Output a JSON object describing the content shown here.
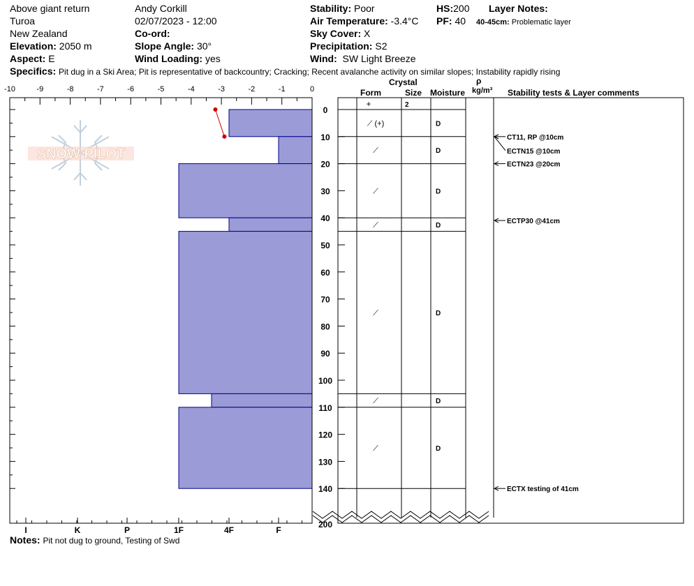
{
  "header": {
    "location": "Above giant return",
    "area": "Turoa",
    "country": "New Zealand",
    "elevation_label": "Elevation:",
    "elevation_value": "2050 m",
    "aspect_label": "Aspect:",
    "aspect_value": "E",
    "observer": "Andy Corkill",
    "datetime": "02/07/2023 - 12:00",
    "coord_label": "Co-ord:",
    "slope_label": "Slope Angle:",
    "slope_value": "30°",
    "wind_loading_label": "Wind Loading:",
    "wind_loading_value": "yes",
    "stability_label": "Stability:",
    "stability_value": "Poor",
    "air_temp_label": "Air Temperature:",
    "air_temp_value": "-3.4°C",
    "sky_label": "Sky Cover:",
    "sky_value": "X",
    "precip_label": "Precipitation:",
    "precip_value": "S2",
    "wind_label": "Wind:",
    "wind_value": "SW Light Breeze",
    "hs_label": "HS:",
    "hs_value": "200",
    "pf_label": "PF:",
    "pf_value": "40",
    "layer_notes_label": "Layer Notes:",
    "layer_note_range": "40-45cm:",
    "layer_note_text": "Problematic layer",
    "specifics_label": "Specifics:",
    "specifics_value": "Pit dug in a Ski Area; Pit is representative of backcountry; Cracking; Recent avalanche activity on similar slopes; Instability rapidly rising"
  },
  "columns": {
    "crystal": "Crystal",
    "form": "Form",
    "size": "Size",
    "moisture": "Moisture",
    "rho": "ρ",
    "density_unit": "kg/m³",
    "comments": "Stability tests & Layer comments"
  },
  "footer": {
    "notes_label": "Notes:",
    "notes_value": "Pit not dug to ground, Testing of Swd"
  },
  "logo_text": "SNOW PILOT",
  "colors": {
    "hardness_fill": "#9b9bd7",
    "hardness_stroke": "#00008b",
    "temp_line": "#cc0000"
  },
  "chart_data": {
    "type": "area",
    "temperature_axis": {
      "label": "",
      "range": [
        -10,
        0
      ],
      "ticks": [
        "-10",
        "-9",
        "-8",
        "-7",
        "-6",
        "-5",
        "-4",
        "-3",
        "-2",
        "-1",
        "0"
      ]
    },
    "hardness_axis": {
      "ticks": [
        "I",
        "K",
        "P",
        "1F",
        "4F",
        "F"
      ]
    },
    "depth_axis": {
      "range": [
        0,
        200
      ],
      "ticks": [
        "0",
        "10",
        "20",
        "30",
        "40",
        "50",
        "60",
        "70",
        "80",
        "90",
        "100",
        "110",
        "120",
        "130",
        "140",
        "200"
      ]
    },
    "temperature_profile": [
      {
        "depth": 0,
        "temp": -3.2
      },
      {
        "depth": 10,
        "temp": -2.9
      }
    ],
    "layers": [
      {
        "top": 0,
        "bottom": 10,
        "hardness": "4F",
        "form": "⟋ (+)",
        "moisture": "D"
      },
      {
        "top": 10,
        "bottom": 20,
        "hardness": "F",
        "form": "⟋",
        "moisture": "D"
      },
      {
        "top": 20,
        "bottom": 40,
        "hardness": "1F",
        "form": "⟋",
        "moisture": "D"
      },
      {
        "top": 40,
        "bottom": 45,
        "hardness": "4F",
        "form": "⟋",
        "moisture": "D"
      },
      {
        "top": 45,
        "bottom": 105,
        "hardness": "1F",
        "form": "⟋",
        "moisture": "D"
      },
      {
        "top": 105,
        "bottom": 110,
        "hardness": "1F+",
        "form": "⟋",
        "moisture": "D"
      },
      {
        "top": 110,
        "bottom": 140,
        "hardness": "1F",
        "form": "⟋",
        "moisture": "D"
      }
    ],
    "surface_row": {
      "form": "+",
      "size": "2"
    },
    "stability_tests": [
      {
        "depth": 10,
        "text": "CT11, RP @10cm"
      },
      {
        "depth": 10,
        "text": "ECTN15 @10cm"
      },
      {
        "depth": 20,
        "text": "ECTN23 @20cm"
      },
      {
        "depth": 41,
        "text": "ECTP30 @41cm"
      },
      {
        "depth": 140,
        "text": "ECTX  testing of 41cm"
      }
    ]
  }
}
